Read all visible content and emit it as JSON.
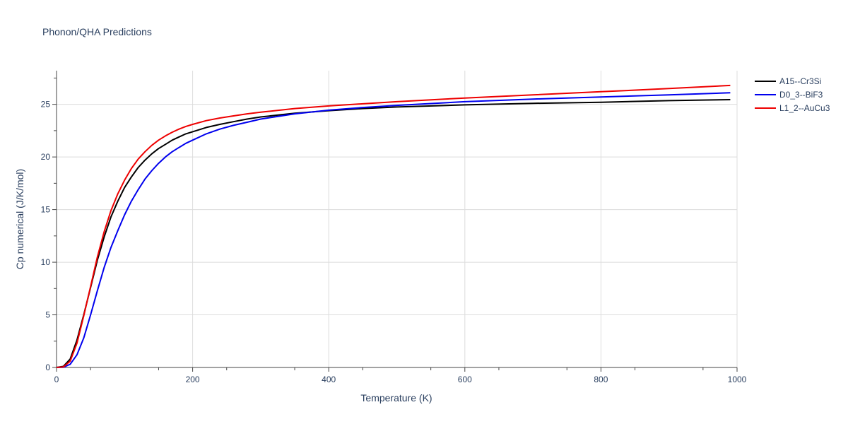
{
  "chart_data": {
    "type": "line",
    "title": "Phonon/QHA Predictions",
    "xlabel": "Temperature (K)",
    "ylabel": "Cp numerical (J/K/mol)",
    "xlim": [
      0,
      1000
    ],
    "ylim": [
      0,
      28.2
    ],
    "xticks": [
      0,
      200,
      400,
      600,
      800,
      1000
    ],
    "yticks": [
      0,
      5,
      10,
      15,
      20,
      25
    ],
    "grid": true,
    "legend": "top-right",
    "series": [
      {
        "name": "A15--Cr3Si",
        "color": "#000000",
        "x": [
          0,
          10,
          20,
          30,
          40,
          50,
          60,
          70,
          80,
          90,
          100,
          110,
          120,
          130,
          140,
          150,
          160,
          170,
          180,
          190,
          200,
          220,
          240,
          260,
          280,
          300,
          350,
          400,
          450,
          500,
          600,
          700,
          800,
          900,
          990
        ],
        "y": [
          0,
          0.1,
          0.8,
          2.6,
          5.0,
          7.6,
          10.2,
          12.4,
          14.3,
          15.8,
          17.1,
          18.1,
          19.0,
          19.7,
          20.3,
          20.8,
          21.2,
          21.6,
          21.9,
          22.2,
          22.4,
          22.8,
          23.1,
          23.35,
          23.6,
          23.8,
          24.15,
          24.4,
          24.6,
          24.75,
          24.95,
          25.1,
          25.2,
          25.35,
          25.45
        ]
      },
      {
        "name": "D0_3--BiF3",
        "color": "#0000ee",
        "x": [
          0,
          10,
          20,
          30,
          40,
          50,
          60,
          70,
          80,
          90,
          100,
          110,
          120,
          130,
          140,
          150,
          160,
          170,
          180,
          190,
          200,
          220,
          240,
          260,
          280,
          300,
          350,
          400,
          450,
          500,
          600,
          700,
          800,
          900,
          990
        ],
        "y": [
          0,
          0.02,
          0.3,
          1.2,
          2.8,
          5.0,
          7.3,
          9.5,
          11.4,
          13.0,
          14.5,
          15.8,
          16.9,
          17.9,
          18.7,
          19.4,
          20.0,
          20.5,
          20.9,
          21.3,
          21.6,
          22.2,
          22.65,
          23.0,
          23.3,
          23.6,
          24.1,
          24.45,
          24.7,
          24.9,
          25.25,
          25.5,
          25.7,
          25.9,
          26.1
        ]
      },
      {
        "name": "L1_2--AuCu3",
        "color": "#ee0000",
        "x": [
          0,
          10,
          20,
          30,
          40,
          50,
          60,
          70,
          80,
          90,
          100,
          110,
          120,
          130,
          140,
          150,
          160,
          170,
          180,
          190,
          200,
          220,
          240,
          260,
          280,
          300,
          350,
          400,
          450,
          500,
          600,
          700,
          800,
          900,
          990
        ],
        "y": [
          0,
          0.05,
          0.6,
          2.3,
          4.9,
          7.7,
          10.5,
          12.9,
          14.9,
          16.5,
          17.8,
          18.9,
          19.8,
          20.5,
          21.1,
          21.6,
          22.0,
          22.35,
          22.65,
          22.9,
          23.1,
          23.45,
          23.7,
          23.9,
          24.1,
          24.25,
          24.6,
          24.85,
          25.05,
          25.25,
          25.6,
          25.9,
          26.2,
          26.5,
          26.8
        ]
      }
    ]
  }
}
